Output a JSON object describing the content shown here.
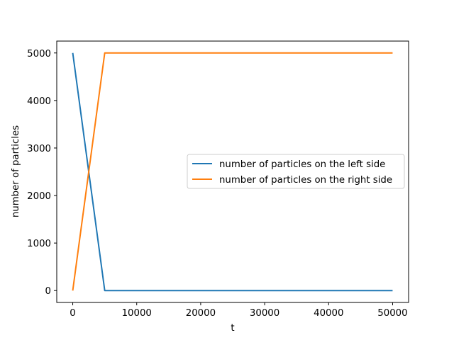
{
  "chart_data": {
    "type": "line",
    "title": "",
    "xlabel": "t",
    "ylabel": "number of particles",
    "xlim": [
      -2500,
      52500
    ],
    "ylim": [
      -250,
      5250
    ],
    "xticks": [
      0,
      10000,
      20000,
      30000,
      40000,
      50000
    ],
    "xtick_labels": [
      "0",
      "10000",
      "20000",
      "30000",
      "40000",
      "50000"
    ],
    "yticks": [
      0,
      1000,
      2000,
      3000,
      4000,
      5000
    ],
    "ytick_labels": [
      "0",
      "1000",
      "2000",
      "3000",
      "4000",
      "5000"
    ],
    "grid": false,
    "legend_position": "center-right",
    "series": [
      {
        "name": "number of particles on the left side",
        "color": "#1f77b4",
        "x": [
          0,
          5000,
          10000,
          20000,
          30000,
          40000,
          50000
        ],
        "y": [
          5000,
          0,
          0,
          0,
          0,
          0,
          0
        ]
      },
      {
        "name": "number of particles on the right side",
        "color": "#ff7f0e",
        "x": [
          0,
          5000,
          10000,
          20000,
          30000,
          40000,
          50000
        ],
        "y": [
          0,
          5000,
          5000,
          5000,
          5000,
          5000,
          5000
        ]
      }
    ]
  }
}
